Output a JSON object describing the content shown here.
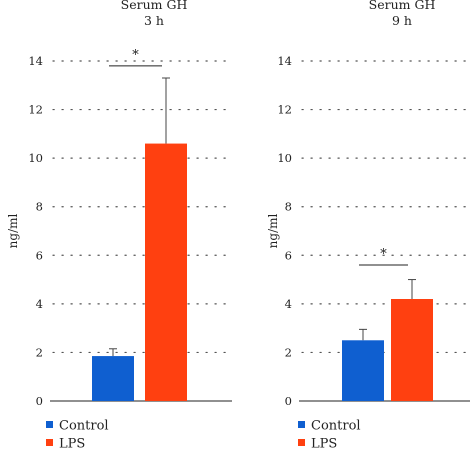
{
  "chart_data": [
    {
      "type": "bar",
      "title": "Serum GH",
      "subtitle": "3 h",
      "xlabel": "",
      "ylabel": "ng/ml",
      "ylim": [
        0,
        14
      ],
      "yticks": [
        0,
        2,
        4,
        6,
        8,
        10,
        12,
        14
      ],
      "grid": "dotted horizontal",
      "categories": [
        "Control",
        "LPS"
      ],
      "series": [
        {
          "name": "Control",
          "color": "#0f5fd0",
          "value": 1.85,
          "error": 0.3
        },
        {
          "name": "LPS",
          "color": "#ff4010",
          "value": 10.6,
          "error": 2.7
        }
      ],
      "annotations": [
        {
          "text": "*",
          "between": [
            "Control",
            "LPS"
          ],
          "level": 13.8
        }
      ],
      "legend_placement": "bottom-left"
    },
    {
      "type": "bar",
      "title": "Serum GH",
      "subtitle": "9 h",
      "xlabel": "",
      "ylabel": "ng/ml",
      "ylim": [
        0,
        14
      ],
      "yticks": [
        0,
        2,
        4,
        6,
        8,
        10,
        12,
        14
      ],
      "grid": "dotted horizontal",
      "categories": [
        "Control",
        "LPS"
      ],
      "series": [
        {
          "name": "Control",
          "color": "#0f5fd0",
          "value": 2.5,
          "error": 0.45
        },
        {
          "name": "LPS",
          "color": "#ff4010",
          "value": 4.2,
          "error": 0.8
        }
      ],
      "annotations": [
        {
          "text": "*",
          "between": [
            "Control",
            "LPS"
          ],
          "level": 5.6
        }
      ],
      "legend_placement": "bottom-left"
    }
  ]
}
